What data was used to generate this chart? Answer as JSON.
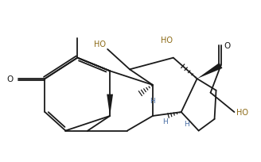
{
  "bg_color": "#ffffff",
  "bond_color": "#1a1a1a",
  "lw": 1.3,
  "ho_color": "#8B6914",
  "h_color": "#4a6fa5",
  "o_color": "#1a1a1a",
  "label_fs": 7.0,
  "xlim": [
    0,
    7.5
  ],
  "ylim": [
    0,
    4.6
  ]
}
